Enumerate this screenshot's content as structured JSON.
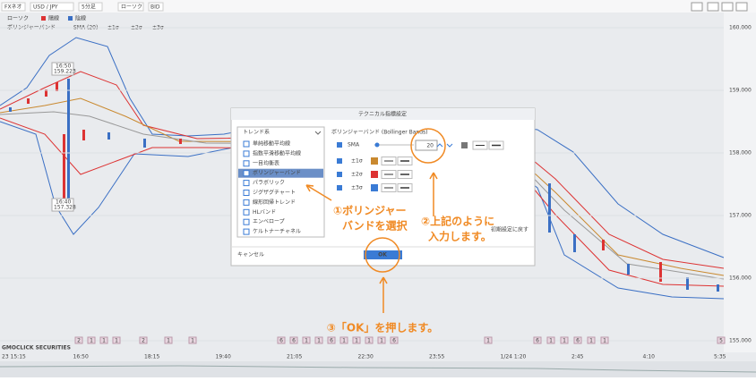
{
  "toolbar": {
    "product": "FXネオ",
    "pair": "USD / JPY",
    "timeframe": "5分足",
    "chart_style": "ローソク",
    "price_type": "BID"
  },
  "legend": {
    "candles": {
      "name": "ローソク",
      "up": "陽線",
      "down": "陰線"
    },
    "bands": {
      "name": "ボリンジャーバンド",
      "sma": "SMA (20)",
      "s1": "±1σ",
      "s2": "±2σ",
      "s3": "±3σ"
    }
  },
  "price_axis": [
    {
      "value": 160,
      "label": "160.000"
    },
    {
      "value": 159,
      "label": "159.000"
    },
    {
      "value": 158,
      "label": "158.000"
    },
    {
      "value": 157,
      "label": "157.000"
    },
    {
      "value": 156,
      "label": "156.000"
    },
    {
      "value": 155,
      "label": "155.000"
    }
  ],
  "markers": [
    {
      "time": "16:50",
      "price": "159.223"
    },
    {
      "time": "16:40",
      "price": "157.328"
    }
  ],
  "time_axis": [
    "23 15:15",
    "16:50",
    "18:15",
    "19:40",
    "21:05",
    "22:30",
    "23:55",
    "1/24 1:20",
    "2:45",
    "4:10",
    "5:35"
  ],
  "badges": [
    "2",
    "1",
    "1",
    "1",
    "2",
    "1",
    "1",
    "6",
    "6",
    "1",
    "1",
    "6",
    "1",
    "1",
    "1",
    "1",
    "6",
    "1",
    "6",
    "1",
    "1",
    "6",
    "1",
    "1",
    "5"
  ],
  "logo": "GMOCLICK SECURITIES",
  "dialog": {
    "title": "テクニカル指標設定",
    "category": "トレンド系",
    "items": [
      "単純移動平均線",
      "指数平滑移動平均線",
      "一目均衡表",
      "ボリンジャーバンド",
      "パラボリック",
      "ジグザグチャート",
      "線形回帰トレンド",
      "HLバンド",
      "エンベロープ",
      "ケルトナーチャネル"
    ],
    "heading": "ボリンジャーバンド (Bollinger Bands)",
    "sma_label": "SMA",
    "period": "20",
    "sigma_rows": [
      "±1σ",
      "±2σ",
      "±3σ"
    ],
    "reset": "初期設定に戻す",
    "cancel": "キャンセル",
    "ok": "OK"
  },
  "annotations": {
    "step1": [
      "①ボリンジャー",
      "バンドを選択"
    ],
    "step2": [
      "②上記のように",
      "入力します。"
    ],
    "step3": "③「OK」を押します。"
  }
}
